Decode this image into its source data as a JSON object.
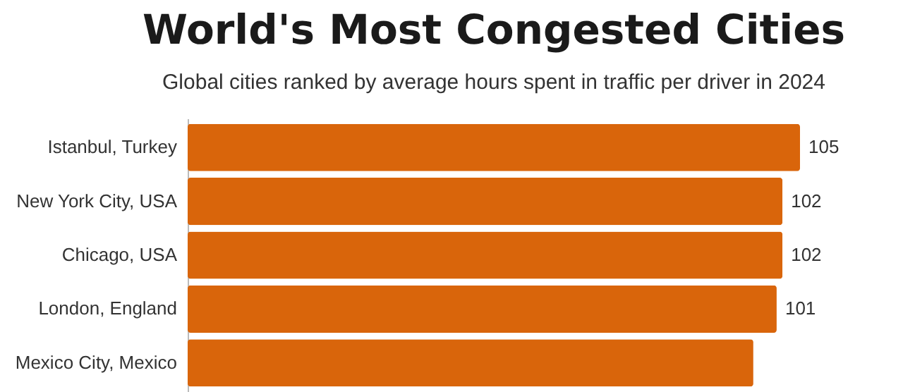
{
  "chart_data": {
    "type": "bar",
    "orientation": "horizontal",
    "title": "World's Most Congested Cities",
    "subtitle": "Global cities ranked by average hours spent in traffic per driver in 2024",
    "categories": [
      "Istanbul, Turkey",
      "New York City, USA",
      "Chicago, USA",
      "London, England",
      "Mexico City, Mexico"
    ],
    "values": [
      105,
      102,
      102,
      101,
      97
    ],
    "value_labels": [
      "105",
      "102",
      "102",
      "101",
      null
    ],
    "color": "#d9650b"
  }
}
